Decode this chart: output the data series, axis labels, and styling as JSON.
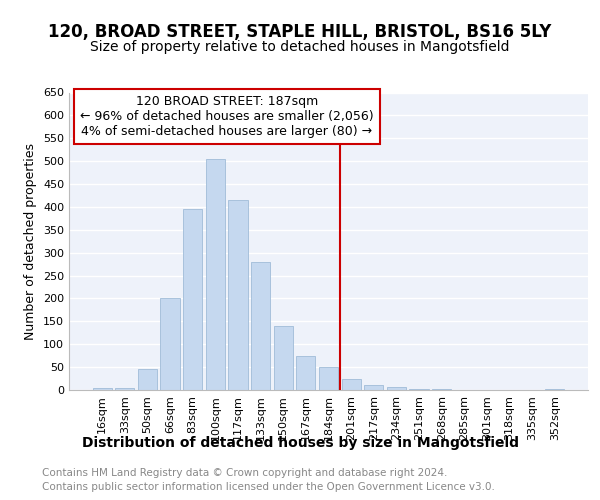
{
  "title": "120, BROAD STREET, STAPLE HILL, BRISTOL, BS16 5LY",
  "subtitle": "Size of property relative to detached houses in Mangotsfield",
  "xlabel": "Distribution of detached houses by size in Mangotsfield",
  "ylabel": "Number of detached properties",
  "categories": [
    "16sqm",
    "33sqm",
    "50sqm",
    "66sqm",
    "83sqm",
    "100sqm",
    "117sqm",
    "133sqm",
    "150sqm",
    "167sqm",
    "184sqm",
    "201sqm",
    "217sqm",
    "234sqm",
    "251sqm",
    "268sqm",
    "285sqm",
    "301sqm",
    "318sqm",
    "335sqm",
    "352sqm"
  ],
  "values": [
    5,
    5,
    45,
    200,
    395,
    505,
    415,
    280,
    140,
    75,
    50,
    25,
    12,
    6,
    3,
    2,
    1,
    0,
    0,
    0,
    2
  ],
  "bar_color": "#c5d8ef",
  "bar_edge_color": "#a0bcd8",
  "annotation_line1": "120 BROAD STREET: 187sqm",
  "annotation_line2": "← 96% of detached houses are smaller (2,056)",
  "annotation_line3": "4% of semi-detached houses are larger (80) →",
  "vline_index": 10.5,
  "vline_color": "#cc0000",
  "annotation_box_color": "#cc0000",
  "ylim": [
    0,
    650
  ],
  "yticks": [
    0,
    50,
    100,
    150,
    200,
    250,
    300,
    350,
    400,
    450,
    500,
    550,
    600,
    650
  ],
  "footer_text": "Contains HM Land Registry data © Crown copyright and database right 2024.\nContains public sector information licensed under the Open Government Licence v3.0.",
  "title_fontsize": 12,
  "subtitle_fontsize": 10,
  "xlabel_fontsize": 10,
  "ylabel_fontsize": 9,
  "tick_fontsize": 8,
  "annotation_fontsize": 9,
  "footer_fontsize": 7.5,
  "bg_color": "#eef2fa",
  "grid_color": "#ffffff"
}
